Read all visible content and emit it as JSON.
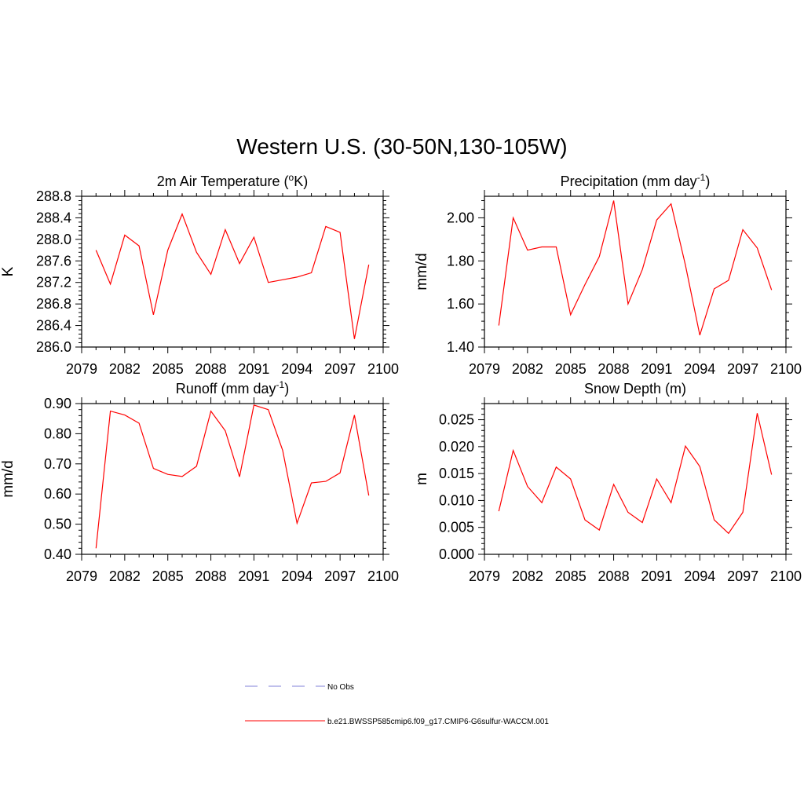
{
  "figure": {
    "title": "Western U.S. (30-50N,130-105W)"
  },
  "legend": {
    "entries": [
      {
        "label": "No Obs",
        "color": "#9a9ae0",
        "style": "dashed"
      },
      {
        "label": "b.e21.BWSSP585cmip6.f09_g17.CMIP6-G6sulfur-WACCM.001",
        "color": "#ff3333",
        "style": "solid"
      }
    ]
  },
  "chart_data": [
    {
      "type": "line",
      "title": "2m Air Temperature (",
      "title_super": "o",
      "title_after": "K)",
      "ylabel": "K",
      "xlim": [
        2079,
        2100
      ],
      "ylim": [
        286.0,
        288.8
      ],
      "x_ticks": [
        "2079",
        "2082",
        "2085",
        "2088",
        "2091",
        "2094",
        "2097",
        "2100"
      ],
      "y_ticks": [
        "286.0",
        "286.4",
        "286.8",
        "287.2",
        "287.6",
        "288.0",
        "288.4",
        "288.8"
      ],
      "y_tick_values": [
        286.0,
        286.4,
        286.8,
        287.2,
        287.6,
        288.0,
        288.4,
        288.8
      ],
      "series": [
        {
          "color": "#ff0000",
          "x": [
            2080,
            2081,
            2082,
            2083,
            2084,
            2085,
            2086,
            2087,
            2088,
            2089,
            2090,
            2091,
            2092,
            2093,
            2094,
            2095,
            2096,
            2097,
            2098,
            2099
          ],
          "values": [
            287.8,
            287.17,
            288.08,
            287.88,
            286.6,
            287.8,
            288.47,
            287.76,
            287.35,
            288.18,
            287.55,
            288.04,
            287.2,
            287.25,
            287.3,
            287.38,
            288.24,
            288.13,
            286.15,
            287.53
          ]
        }
      ]
    },
    {
      "type": "line",
      "title": "Precipitation (mm day",
      "title_super": "-1",
      "title_after": ")",
      "ylabel": "mm/d",
      "xlim": [
        2079,
        2100
      ],
      "ylim": [
        1.4,
        2.1
      ],
      "x_ticks": [
        "2079",
        "2082",
        "2085",
        "2088",
        "2091",
        "2094",
        "2097",
        "2100"
      ],
      "y_ticks": [
        "1.40",
        "1.60",
        "1.80",
        "2.00"
      ],
      "y_tick_values": [
        1.4,
        1.6,
        1.8,
        2.0
      ],
      "series": [
        {
          "color": "#ff0000",
          "x": [
            2080,
            2081,
            2082,
            2083,
            2084,
            2085,
            2086,
            2087,
            2088,
            2089,
            2090,
            2091,
            2092,
            2093,
            2094,
            2095,
            2096,
            2097,
            2098,
            2099
          ],
          "values": [
            1.5,
            2.0,
            1.85,
            1.865,
            1.865,
            1.55,
            1.69,
            1.82,
            2.08,
            1.6,
            1.76,
            1.99,
            2.065,
            1.78,
            1.455,
            1.67,
            1.71,
            1.945,
            1.86,
            1.665
          ]
        }
      ]
    },
    {
      "type": "line",
      "title": "Runoff (mm day",
      "title_super": "-1",
      "title_after": ")",
      "ylabel": "mm/d",
      "xlim": [
        2079,
        2100
      ],
      "ylim": [
        0.4,
        0.9
      ],
      "x_ticks": [
        "2079",
        "2082",
        "2085",
        "2088",
        "2091",
        "2094",
        "2097",
        "2100"
      ],
      "y_ticks": [
        "0.40",
        "0.50",
        "0.60",
        "0.70",
        "0.80",
        "0.90"
      ],
      "y_tick_values": [
        0.4,
        0.5,
        0.6,
        0.7,
        0.8,
        0.9
      ],
      "series": [
        {
          "color": "#ff0000",
          "x": [
            2080,
            2081,
            2082,
            2083,
            2084,
            2085,
            2086,
            2087,
            2088,
            2089,
            2090,
            2091,
            2092,
            2093,
            2094,
            2095,
            2096,
            2097,
            2098,
            2099
          ],
          "values": [
            0.42,
            0.875,
            0.862,
            0.835,
            0.685,
            0.665,
            0.658,
            0.692,
            0.875,
            0.81,
            0.657,
            0.895,
            0.88,
            0.745,
            0.503,
            0.637,
            0.642,
            0.67,
            0.862,
            0.595
          ]
        }
      ]
    },
    {
      "type": "line",
      "title": "Snow Depth (m)",
      "title_super": "",
      "title_after": "",
      "ylabel": "m",
      "xlim": [
        2079,
        2100
      ],
      "ylim": [
        0.0,
        0.028
      ],
      "x_ticks": [
        "2079",
        "2082",
        "2085",
        "2088",
        "2091",
        "2094",
        "2097",
        "2100"
      ],
      "y_ticks": [
        "0.000",
        "0.005",
        "0.010",
        "0.015",
        "0.020",
        "0.025"
      ],
      "y_tick_values": [
        0.0,
        0.005,
        0.01,
        0.015,
        0.02,
        0.025
      ],
      "series": [
        {
          "color": "#ff0000",
          "x": [
            2080,
            2081,
            2082,
            2083,
            2084,
            2085,
            2086,
            2087,
            2088,
            2089,
            2090,
            2091,
            2092,
            2093,
            2094,
            2095,
            2096,
            2097,
            2098,
            2099
          ],
          "values": [
            0.008,
            0.0193,
            0.0126,
            0.0096,
            0.0162,
            0.014,
            0.0064,
            0.0045,
            0.013,
            0.0078,
            0.0059,
            0.014,
            0.0096,
            0.0201,
            0.0163,
            0.0064,
            0.0039,
            0.0078,
            0.0262,
            0.0148
          ]
        }
      ]
    }
  ]
}
